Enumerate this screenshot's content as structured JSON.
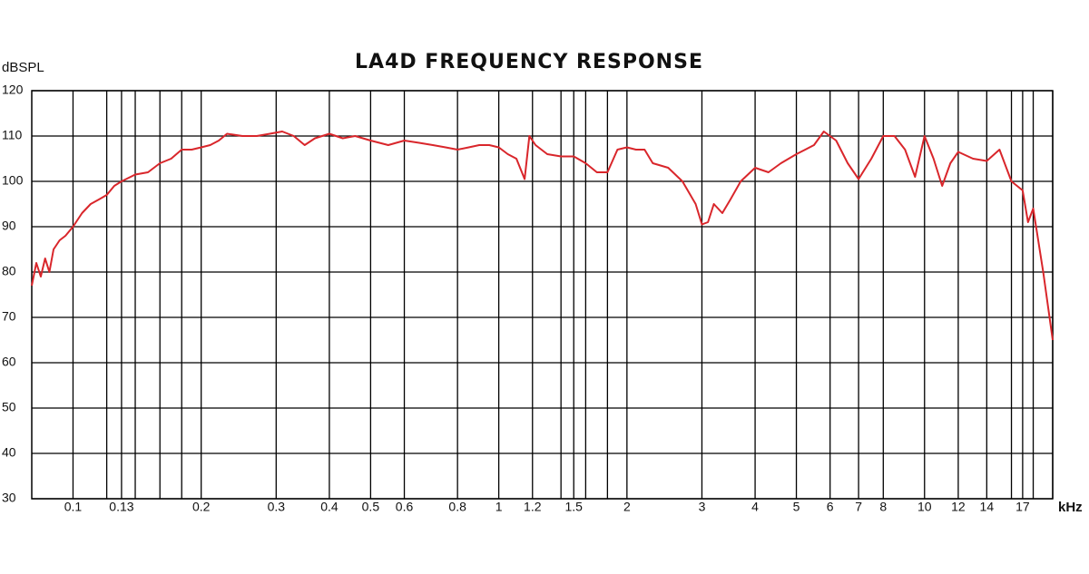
{
  "chart_data": {
    "type": "line",
    "title": "LA4D FREQUENCY RESPONSE",
    "y_label": "dBSPL",
    "x_label": "kHz",
    "xscale": "log",
    "xlim": [
      0.08,
      20
    ],
    "ylim": [
      30,
      120
    ],
    "xticks": [
      0.1,
      0.13,
      0.2,
      0.3,
      0.4,
      0.5,
      0.6,
      0.8,
      1,
      1.2,
      1.5,
      2,
      3,
      4,
      5,
      6,
      7,
      8,
      10,
      12,
      14,
      17
    ],
    "xgrid_minor": [
      0.12,
      0.14,
      0.16,
      0.18,
      1.4,
      1.6,
      1.8,
      16,
      18,
      20
    ],
    "yticks": [
      30,
      40,
      50,
      60,
      70,
      80,
      90,
      100,
      110,
      120
    ],
    "grid": true,
    "series": [
      {
        "name": "LA4D",
        "color": "#d9262b",
        "x": [
          0.08,
          0.082,
          0.084,
          0.086,
          0.088,
          0.09,
          0.093,
          0.096,
          0.1,
          0.105,
          0.11,
          0.115,
          0.12,
          0.125,
          0.13,
          0.14,
          0.15,
          0.16,
          0.17,
          0.18,
          0.19,
          0.2,
          0.21,
          0.22,
          0.23,
          0.25,
          0.27,
          0.29,
          0.31,
          0.33,
          0.35,
          0.37,
          0.4,
          0.43,
          0.46,
          0.5,
          0.55,
          0.6,
          0.65,
          0.7,
          0.75,
          0.8,
          0.85,
          0.9,
          0.95,
          1,
          1.05,
          1.1,
          1.15,
          1.18,
          1.22,
          1.3,
          1.4,
          1.5,
          1.6,
          1.7,
          1.8,
          1.9,
          2,
          2.1,
          2.2,
          2.3,
          2.5,
          2.7,
          2.9,
          3,
          3.1,
          3.2,
          3.35,
          3.5,
          3.7,
          4,
          4.3,
          4.6,
          5,
          5.5,
          5.8,
          6.2,
          6.6,
          7,
          7.5,
          8,
          8.5,
          9,
          9.5,
          10,
          10.5,
          11,
          11.5,
          12,
          13,
          14,
          15,
          16,
          17,
          17.5,
          18,
          19,
          20
        ],
        "values": [
          77,
          82,
          79,
          83,
          80,
          85,
          87,
          88,
          90,
          93,
          95,
          96,
          97,
          99,
          100,
          101.5,
          102,
          104,
          105,
          107,
          107,
          107.5,
          108,
          109,
          110.5,
          110,
          110,
          110.5,
          111,
          110,
          108,
          109.5,
          110.5,
          109.5,
          110,
          109,
          108,
          109,
          108.5,
          108,
          107.5,
          107,
          107.5,
          108,
          108,
          107.5,
          106,
          105,
          100.5,
          110,
          108,
          106,
          105.5,
          105.5,
          104,
          102,
          102,
          107,
          107.5,
          107,
          107,
          104,
          103,
          100,
          95,
          90.5,
          91,
          95,
          93,
          96,
          100,
          103,
          102,
          104,
          106,
          108,
          111,
          109,
          104,
          100.5,
          105,
          110,
          110,
          107,
          101,
          110,
          105,
          99,
          104,
          106.5,
          105,
          104.5,
          107,
          100,
          98,
          91,
          94,
          80,
          65
        ]
      }
    ]
  }
}
